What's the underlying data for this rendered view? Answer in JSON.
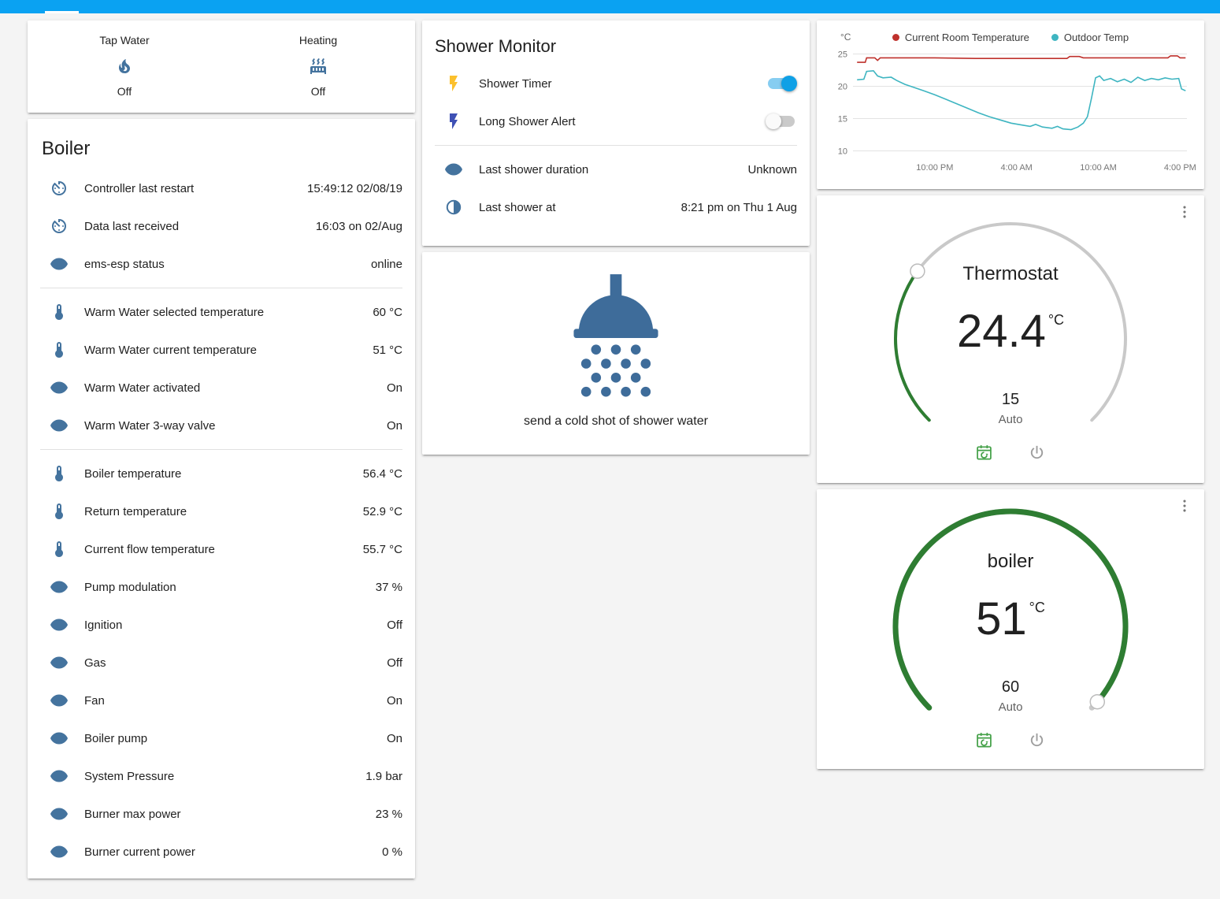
{
  "colors": {
    "header": "#0aa2f2",
    "icon": "#44739e",
    "toggle_on_thumb": "#0fa0e6",
    "toggle_on_track": "#86cdf1",
    "active_green": "#2e7d32",
    "track_gray": "#c9c9c9",
    "calendar_icon": "#43a047",
    "power_icon": "#9e9e9e",
    "shower_icon": "#3e6c9a",
    "flash_yellow": "#fbc02d",
    "flash_blue": "#3f51b5"
  },
  "glance": {
    "items": [
      {
        "label": "Tap Water",
        "state": "Off",
        "icon": "fire-icon"
      },
      {
        "label": "Heating",
        "state": "Off",
        "icon": "radiator-icon"
      }
    ]
  },
  "boiler": {
    "title": "Boiler",
    "groups": [
      [
        {
          "icon": "timer-icon",
          "label": "Controller last restart",
          "value": "15:49:12 02/08/19"
        },
        {
          "icon": "timer-icon",
          "label": "Data last received",
          "value": "16:03 on 02/Aug"
        },
        {
          "icon": "eye-icon",
          "label": "ems-esp status",
          "value": "online"
        }
      ],
      [
        {
          "icon": "thermometer-icon",
          "label": "Warm Water selected temperature",
          "value": "60 °C"
        },
        {
          "icon": "thermometer-icon",
          "label": "Warm Water current temperature",
          "value": "51 °C"
        },
        {
          "icon": "eye-icon",
          "label": "Warm Water activated",
          "value": "On"
        },
        {
          "icon": "eye-icon",
          "label": "Warm Water 3-way valve",
          "value": "On"
        }
      ],
      [
        {
          "icon": "thermometer-icon",
          "label": "Boiler temperature",
          "value": "56.4 °C"
        },
        {
          "icon": "thermometer-icon",
          "label": "Return temperature",
          "value": "52.9 °C"
        },
        {
          "icon": "thermometer-icon",
          "label": "Current flow temperature",
          "value": "55.7 °C"
        },
        {
          "icon": "eye-icon",
          "label": "Pump modulation",
          "value": "37 %"
        },
        {
          "icon": "eye-icon",
          "label": "Ignition",
          "value": "Off"
        },
        {
          "icon": "eye-icon",
          "label": "Gas",
          "value": "Off"
        },
        {
          "icon": "eye-icon",
          "label": "Fan",
          "value": "On"
        },
        {
          "icon": "eye-icon",
          "label": "Boiler pump",
          "value": "On"
        },
        {
          "icon": "eye-icon",
          "label": "System Pressure",
          "value": "1.9 bar"
        },
        {
          "icon": "eye-icon",
          "label": "Burner max power",
          "value": "23 %"
        },
        {
          "icon": "eye-icon",
          "label": "Burner current power",
          "value": "0 %"
        }
      ]
    ]
  },
  "shower": {
    "title": "Shower Monitor",
    "toggles": [
      {
        "icon": "flash-icon",
        "icon_color_key": "flash_yellow",
        "label": "Shower Timer",
        "state": "on"
      },
      {
        "icon": "flash-alert-icon",
        "icon_color_key": "flash_blue",
        "label": "Long Shower Alert",
        "state": "off"
      }
    ],
    "sensors": [
      {
        "icon": "eye-icon",
        "label": "Last shower duration",
        "value": "Unknown"
      },
      {
        "icon": "moon-icon",
        "label": "Last shower at",
        "value": "8:21 pm on Thu 1 Aug"
      }
    ],
    "picture_caption": "send a cold shot of shower water"
  },
  "chart_data": {
    "type": "line",
    "title": "",
    "y_axis_label": "°C",
    "y_ticks": [
      10,
      15,
      20,
      25
    ],
    "y_domain": [
      9.7,
      25.3
    ],
    "x_domain": [
      0,
      24.5
    ],
    "x_ticks": [
      {
        "t": 6,
        "label": "10:00 PM"
      },
      {
        "t": 12,
        "label": "4:00 AM"
      },
      {
        "t": 18,
        "label": "10:00 AM"
      },
      {
        "t": 24,
        "label": "4:00 PM"
      }
    ],
    "grid": true,
    "legend_position": "top",
    "series": [
      {
        "name": "Current Room Temperature",
        "color": "#bf312c",
        "points": [
          [
            0.3,
            23.7
          ],
          [
            0.9,
            23.7
          ],
          [
            1.0,
            24.4
          ],
          [
            1.6,
            24.4
          ],
          [
            1.8,
            24.0
          ],
          [
            2.0,
            24.4
          ],
          [
            4.0,
            24.4
          ],
          [
            6.0,
            24.4
          ],
          [
            9.0,
            24.3
          ],
          [
            12.0,
            24.3
          ],
          [
            15.7,
            24.3
          ],
          [
            15.9,
            24.6
          ],
          [
            16.6,
            24.6
          ],
          [
            16.9,
            24.4
          ],
          [
            19.0,
            24.4
          ],
          [
            21.0,
            24.4
          ],
          [
            23.1,
            24.4
          ],
          [
            23.3,
            24.7
          ],
          [
            23.8,
            24.7
          ],
          [
            24.0,
            24.4
          ],
          [
            24.4,
            24.4
          ]
        ]
      },
      {
        "name": "Outdoor Temp",
        "color": "#3eb5c1",
        "points": [
          [
            0.3,
            21.0
          ],
          [
            0.8,
            21.1
          ],
          [
            1.0,
            22.3
          ],
          [
            1.5,
            22.4
          ],
          [
            1.8,
            21.6
          ],
          [
            2.2,
            21.3
          ],
          [
            2.8,
            21.4
          ],
          [
            3.2,
            20.9
          ],
          [
            3.8,
            20.3
          ],
          [
            4.5,
            19.8
          ],
          [
            5.2,
            19.3
          ],
          [
            6.0,
            18.7
          ],
          [
            6.8,
            18.0
          ],
          [
            7.6,
            17.3
          ],
          [
            8.4,
            16.6
          ],
          [
            9.2,
            15.9
          ],
          [
            10.0,
            15.3
          ],
          [
            10.8,
            14.8
          ],
          [
            11.6,
            14.3
          ],
          [
            12.4,
            14.0
          ],
          [
            13.0,
            13.8
          ],
          [
            13.4,
            14.1
          ],
          [
            13.9,
            13.7
          ],
          [
            14.6,
            13.5
          ],
          [
            15.0,
            13.8
          ],
          [
            15.4,
            13.4
          ],
          [
            16.0,
            13.3
          ],
          [
            16.5,
            13.7
          ],
          [
            16.9,
            14.3
          ],
          [
            17.2,
            15.3
          ],
          [
            17.5,
            18.2
          ],
          [
            17.8,
            21.3
          ],
          [
            18.1,
            21.6
          ],
          [
            18.4,
            20.9
          ],
          [
            18.9,
            21.2
          ],
          [
            19.4,
            20.7
          ],
          [
            19.9,
            21.1
          ],
          [
            20.4,
            20.6
          ],
          [
            20.9,
            21.4
          ],
          [
            21.4,
            20.9
          ],
          [
            21.9,
            21.2
          ],
          [
            22.4,
            21.0
          ],
          [
            22.9,
            21.3
          ],
          [
            23.4,
            21.1
          ],
          [
            23.9,
            21.2
          ],
          [
            24.1,
            19.6
          ],
          [
            24.4,
            19.3
          ]
        ]
      }
    ]
  },
  "climate": {
    "thermostat": {
      "name": "Thermostat",
      "current": "24.4",
      "unit": "°C",
      "target": "15",
      "mode": "Auto",
      "knob_fraction": 0.3,
      "stroke": 4
    },
    "boiler": {
      "name": "boiler",
      "current": "51",
      "unit": "°C",
      "target": "60",
      "mode": "Auto",
      "knob_fraction": 0.985,
      "stroke": 7
    }
  }
}
